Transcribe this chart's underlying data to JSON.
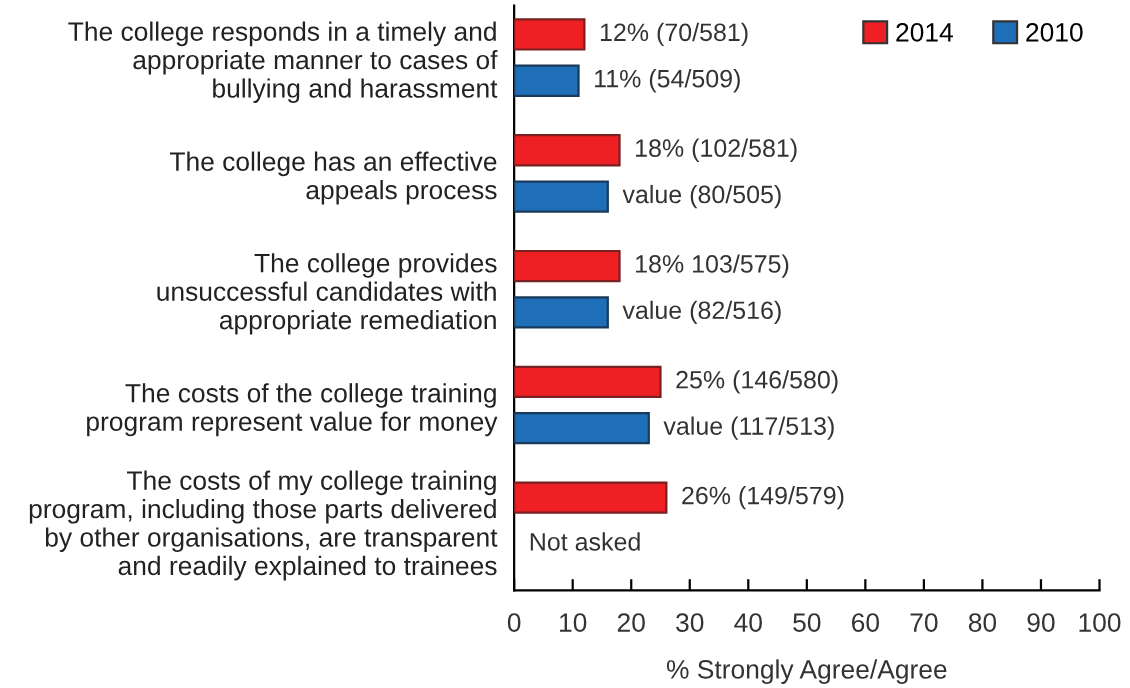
{
  "chart_data": {
    "type": "bar",
    "orientation": "horizontal",
    "xlabel": "% Strongly Agree/Agree",
    "categories": [
      "The college responds in a timely and\nappropriate manner to cases of\nbullying and harassment",
      "The college has an effective\nappeals process",
      "The college provides\nunsuccessful candidates with\nappropriate remediation",
      "The costs of the college training\nprogram represent value for money",
      "The costs of my college training\nprogram, including those parts delivered\nby other organisations, are transparent\nand readily explained to trainees"
    ],
    "series": [
      {
        "name": "2014",
        "color": "#ee2024",
        "values": [
          12,
          18,
          18,
          25,
          26
        ],
        "value_labels": [
          "12% (70/581)",
          "18% (102/581)",
          "18% 103/575)",
          "25% (146/580)",
          "26% (149/579)"
        ]
      },
      {
        "name": "2010",
        "color": "#1f6fb8",
        "values": [
          11,
          16,
          16,
          23,
          null
        ],
        "value_labels": [
          "11% (54/509)",
          "value (80/505)",
          "value (82/516)",
          "value (117/513)",
          "Not asked"
        ]
      }
    ],
    "xlim": [
      0,
      100
    ],
    "xticks": [
      0,
      10,
      20,
      30,
      40,
      50,
      60,
      70,
      80,
      90,
      100
    ],
    "grid": false,
    "legend": "top right"
  }
}
